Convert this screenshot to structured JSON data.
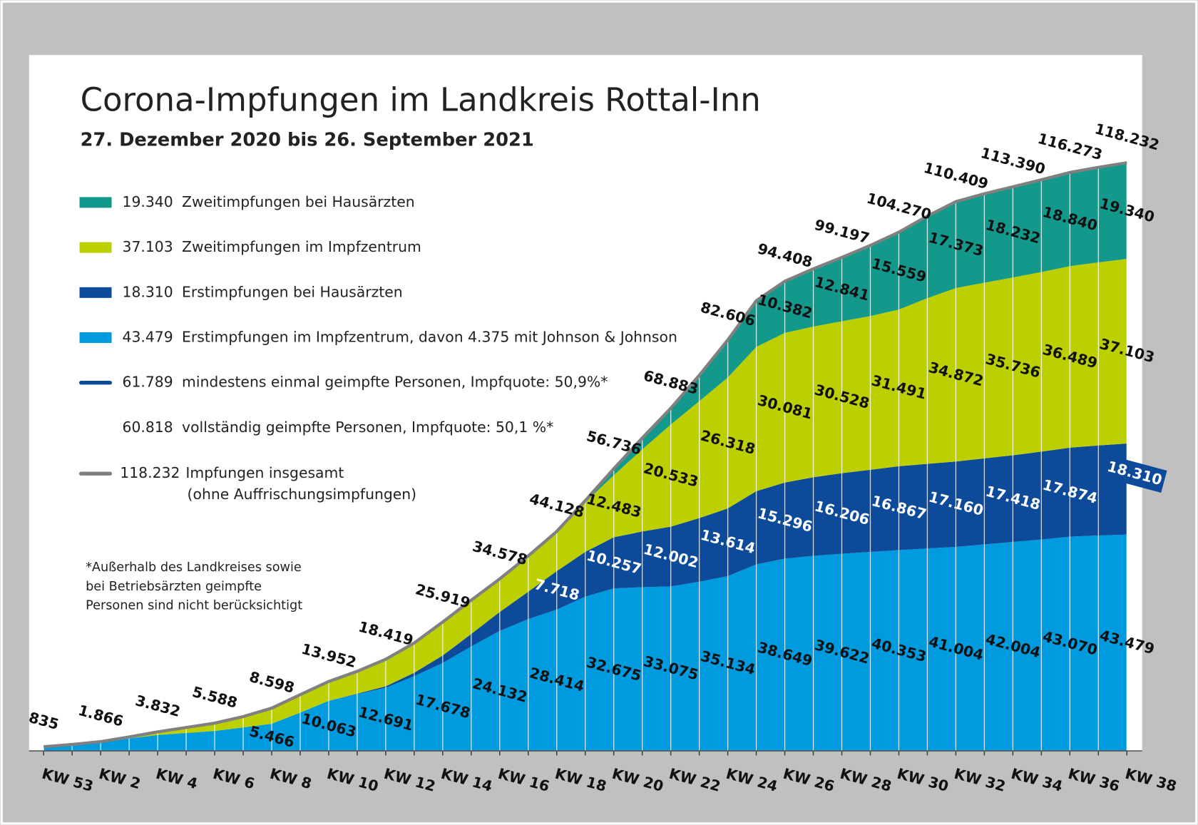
{
  "chart_data": {
    "type": "stacked_area",
    "title": "Corona-Impfungen im Landkreis Rottal-Inn",
    "subtitle": "27. Dezember 2020 bis 26. September 2021",
    "categories": [
      "KW 53",
      null,
      "KW 2",
      null,
      "KW 4",
      null,
      "KW 6",
      null,
      "KW 8",
      null,
      "KW 10",
      null,
      "KW 12",
      null,
      "KW 14",
      null,
      "KW 16",
      null,
      "KW 18",
      null,
      "KW 20",
      null,
      "KW 22",
      null,
      "KW 24",
      null,
      "KW 26",
      null,
      "KW 28",
      null,
      "KW 30",
      null,
      "KW 32",
      null,
      "KW 34",
      null,
      "KW 36",
      null,
      "KW 38"
    ],
    "series": [
      {
        "name": "Zweitimpfungen bei Hausärzten",
        "legend_value": "19.340",
        "color": "#13998c",
        "label_color": "#111111",
        "values": [
          0,
          0,
          0,
          0,
          0,
          0,
          0,
          0,
          0,
          0,
          0,
          0,
          0,
          0,
          0,
          0,
          0,
          0,
          0,
          300,
          1321,
          2300,
          3273,
          5200,
          7540,
          9300,
          10382,
          11600,
          12841,
          14200,
          15559,
          16500,
          17373,
          17900,
          18232,
          18550,
          18840,
          19100,
          19340
        ],
        "value_labels": [
          null,
          null,
          null,
          null,
          null,
          null,
          null,
          null,
          null,
          null,
          null,
          null,
          null,
          null,
          null,
          null,
          null,
          null,
          null,
          null,
          null,
          null,
          null,
          null,
          null,
          null,
          "10.382",
          null,
          "12.841",
          null,
          "15.559",
          null,
          "17.373",
          null,
          "18.232",
          null,
          "18.840",
          null,
          "19.340"
        ]
      },
      {
        "name": "Zweitimpfungen im Impfzentrum",
        "legend_value": "37.103",
        "color": "#bccf00",
        "label_color": "#111111",
        "values": [
          0,
          0,
          66,
          300,
          632,
          1100,
          1588,
          2200,
          3132,
          3600,
          3889,
          4500,
          5428,
          6000,
          6741,
          6800,
          6646,
          7200,
          7996,
          10000,
          12483,
          16500,
          20533,
          23500,
          26318,
          29000,
          30081,
          30300,
          30528,
          30900,
          31491,
          33300,
          34872,
          35300,
          35736,
          36100,
          36489,
          36800,
          37103
        ],
        "value_labels": [
          null,
          null,
          null,
          null,
          null,
          null,
          null,
          null,
          null,
          null,
          null,
          null,
          null,
          null,
          null,
          null,
          null,
          null,
          null,
          null,
          "12.483",
          null,
          "20.533",
          null,
          "26.318",
          null,
          "30.081",
          null,
          "30.528",
          null,
          "31.491",
          null,
          "34.872",
          null,
          "35.736",
          null,
          "36.489",
          null,
          "37.103"
        ]
      },
      {
        "name": "Erstimpfungen bei Hausärzten",
        "legend_value": "18.310",
        "color": "#0d4a9a",
        "label_color": "#ffffff",
        "values": [
          0,
          0,
          0,
          0,
          0,
          0,
          0,
          0,
          0,
          0,
          0,
          100,
          300,
          700,
          1500,
          2500,
          3800,
          5500,
          7718,
          9000,
          10257,
          11200,
          12002,
          12800,
          13614,
          14700,
          15296,
          15800,
          16206,
          16500,
          16867,
          17000,
          17160,
          17300,
          17418,
          17650,
          17874,
          18100,
          18310
        ],
        "value_labels": [
          null,
          null,
          null,
          null,
          null,
          null,
          null,
          null,
          null,
          null,
          null,
          null,
          null,
          null,
          null,
          null,
          null,
          null,
          "7.718",
          null,
          "10.257",
          null,
          "12.002",
          null,
          "13.614",
          null,
          "15.296",
          null,
          "16.206",
          null,
          "16.867",
          null,
          "17.160",
          null,
          "17.418",
          null,
          "17.874",
          null,
          "18.310"
        ]
      },
      {
        "name": "Erstimpfungen im Impfzentrum, davon 4.375 mit Johnson & Johnson",
        "legend_value": "43.479",
        "color": "#009ade",
        "label_color": "#111111",
        "values": [
          835,
          1300,
          1800,
          2500,
          3200,
          3600,
          4000,
          4700,
          5466,
          7700,
          10063,
          11400,
          12691,
          15000,
          17678,
          21000,
          24132,
          26500,
          28414,
          31000,
          32675,
          32900,
          33075,
          34000,
          35134,
          37500,
          38649,
          39200,
          39622,
          40000,
          40353,
          40700,
          41004,
          41500,
          42004,
          42500,
          43070,
          43300,
          43479
        ],
        "value_labels": [
          null,
          null,
          null,
          null,
          null,
          null,
          null,
          null,
          "5.466",
          null,
          "10.063",
          null,
          "12.691",
          null,
          "17.678",
          null,
          "24.132",
          null,
          "28.414",
          null,
          "32.675",
          null,
          "33.075",
          null,
          "35.134",
          null,
          "38.649",
          null,
          "39.622",
          null,
          "40.353",
          null,
          "41.004",
          null,
          "42.004",
          null,
          "43.070",
          null,
          "43.479"
        ]
      }
    ],
    "notes": [
      {
        "value": "61.789",
        "text": "mindestens einmal geimpfte Personen, Impfquote: 50,9%*",
        "color": "#0d4a9a"
      },
      {
        "value": "60.818",
        "text": "vollständig geimpfte Personen, Impfquote: 50,1 %*",
        "color": null
      }
    ],
    "total": {
      "name": "Impfungen insgesamt",
      "name_line2": "(ohne Auffrischungsimpfungen)",
      "legend_value": "118.232",
      "color": "#808080",
      "values": [
        835,
        1300,
        1866,
        2800,
        3832,
        4700,
        5588,
        6900,
        8598,
        11300,
        13952,
        16000,
        18419,
        21700,
        25919,
        30300,
        34578,
        39200,
        44128,
        50300,
        56736,
        62900,
        68883,
        75500,
        82606,
        90500,
        94408,
        96900,
        99197,
        101600,
        104270,
        107500,
        110409,
        112000,
        113390,
        114800,
        116273,
        117300,
        118232
      ],
      "value_labels": [
        "835",
        null,
        "1.866",
        null,
        "3.832",
        null,
        "5.588",
        null,
        "8.598",
        null,
        "13.952",
        null,
        "18.419",
        null,
        "25.919",
        null,
        "34.578",
        null,
        "44.128",
        null,
        "56.736",
        null,
        "68.883",
        null,
        "82.606",
        null,
        "94.408",
        null,
        "99.197",
        null,
        "104.270",
        null,
        "110.409",
        null,
        "113.390",
        null,
        "116.273",
        null,
        "118.232"
      ]
    },
    "footnote": [
      "*Außerhalb des Landkreises sowie",
      "bei Betriebsärzten geimpfte",
      "Personen sind nicht berücksichtigt"
    ]
  }
}
